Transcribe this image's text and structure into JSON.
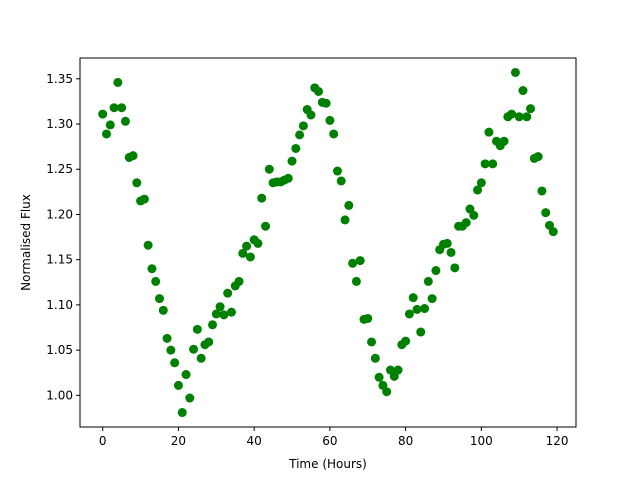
{
  "chart_data": {
    "type": "scatter",
    "title": "",
    "xlabel": "Time (Hours)",
    "ylabel": "Normalised Flux",
    "xlim": [
      -6,
      125
    ],
    "ylim": [
      0.965,
      1.373
    ],
    "grid": false,
    "legend": "none",
    "marker_color": "#008000",
    "x_ticks": [
      {
        "value": 0,
        "label": "0"
      },
      {
        "value": 20,
        "label": "20"
      },
      {
        "value": 40,
        "label": "40"
      },
      {
        "value": 60,
        "label": "60"
      },
      {
        "value": 80,
        "label": "80"
      },
      {
        "value": 100,
        "label": "100"
      },
      {
        "value": 120,
        "label": "120"
      }
    ],
    "y_ticks": [
      {
        "value": 1.0,
        "label": "1.00"
      },
      {
        "value": 1.05,
        "label": "1.05"
      },
      {
        "value": 1.1,
        "label": "1.10"
      },
      {
        "value": 1.15,
        "label": "1.15"
      },
      {
        "value": 1.2,
        "label": "1.20"
      },
      {
        "value": 1.25,
        "label": "1.25"
      },
      {
        "value": 1.3,
        "label": "1.30"
      },
      {
        "value": 1.35,
        "label": "1.35"
      }
    ],
    "points": [
      [
        0,
        1.311
      ],
      [
        1,
        1.289
      ],
      [
        2,
        1.299
      ],
      [
        3,
        1.318
      ],
      [
        4,
        1.346
      ],
      [
        5,
        1.318
      ],
      [
        6,
        1.303
      ],
      [
        7,
        1.263
      ],
      [
        8,
        1.265
      ],
      [
        9,
        1.235
      ],
      [
        10,
        1.215
      ],
      [
        11,
        1.217
      ],
      [
        12,
        1.166
      ],
      [
        13,
        1.14
      ],
      [
        14,
        1.126
      ],
      [
        15,
        1.107
      ],
      [
        16,
        1.094
      ],
      [
        17,
        1.063
      ],
      [
        18,
        1.05
      ],
      [
        19,
        1.036
      ],
      [
        20,
        1.011
      ],
      [
        21,
        0.981
      ],
      [
        22,
        1.023
      ],
      [
        23,
        0.997
      ],
      [
        24,
        1.051
      ],
      [
        25,
        1.073
      ],
      [
        26,
        1.041
      ],
      [
        27,
        1.056
      ],
      [
        28,
        1.059
      ],
      [
        29,
        1.078
      ],
      [
        30,
        1.09
      ],
      [
        31,
        1.098
      ],
      [
        32,
        1.089
      ],
      [
        33,
        1.113
      ],
      [
        34,
        1.092
      ],
      [
        35,
        1.121
      ],
      [
        36,
        1.126
      ],
      [
        37,
        1.157
      ],
      [
        38,
        1.165
      ],
      [
        39,
        1.153
      ],
      [
        40,
        1.172
      ],
      [
        41,
        1.168
      ],
      [
        42,
        1.218
      ],
      [
        43,
        1.187
      ],
      [
        44,
        1.25
      ],
      [
        45,
        1.235
      ],
      [
        46,
        1.236
      ],
      [
        47,
        1.236
      ],
      [
        48,
        1.238
      ],
      [
        49,
        1.24
      ],
      [
        50,
        1.259
      ],
      [
        51,
        1.273
      ],
      [
        52,
        1.288
      ],
      [
        53,
        1.298
      ],
      [
        54,
        1.316
      ],
      [
        55,
        1.31
      ],
      [
        56,
        1.34
      ],
      [
        57,
        1.336
      ],
      [
        58,
        1.324
      ],
      [
        59,
        1.323
      ],
      [
        60,
        1.304
      ],
      [
        61,
        1.289
      ],
      [
        62,
        1.248
      ],
      [
        63,
        1.237
      ],
      [
        64,
        1.194
      ],
      [
        65,
        1.21
      ],
      [
        66,
        1.146
      ],
      [
        67,
        1.126
      ],
      [
        68,
        1.149
      ],
      [
        69,
        1.084
      ],
      [
        70,
        1.085
      ],
      [
        71,
        1.059
      ],
      [
        72,
        1.041
      ],
      [
        73,
        1.02
      ],
      [
        74,
        1.011
      ],
      [
        75,
        1.004
      ],
      [
        76,
        1.028
      ],
      [
        77,
        1.021
      ],
      [
        78,
        1.028
      ],
      [
        79,
        1.056
      ],
      [
        80,
        1.06
      ],
      [
        81,
        1.09
      ],
      [
        82,
        1.108
      ],
      [
        83,
        1.095
      ],
      [
        84,
        1.07
      ],
      [
        85,
        1.096
      ],
      [
        86,
        1.126
      ],
      [
        87,
        1.107
      ],
      [
        88,
        1.138
      ],
      [
        89,
        1.161
      ],
      [
        90,
        1.167
      ],
      [
        91,
        1.168
      ],
      [
        92,
        1.158
      ],
      [
        93,
        1.141
      ],
      [
        94,
        1.187
      ],
      [
        95,
        1.187
      ],
      [
        96,
        1.191
      ],
      [
        97,
        1.206
      ],
      [
        98,
        1.199
      ],
      [
        99,
        1.227
      ],
      [
        100,
        1.235
      ],
      [
        101,
        1.256
      ],
      [
        102,
        1.291
      ],
      [
        103,
        1.256
      ],
      [
        104,
        1.281
      ],
      [
        105,
        1.276
      ],
      [
        106,
        1.281
      ],
      [
        107,
        1.308
      ],
      [
        108,
        1.311
      ],
      [
        109,
        1.357
      ],
      [
        110,
        1.308
      ],
      [
        111,
        1.337
      ],
      [
        112,
        1.308
      ],
      [
        113,
        1.317
      ],
      [
        114,
        1.262
      ],
      [
        115,
        1.264
      ],
      [
        116,
        1.226
      ],
      [
        117,
        1.202
      ],
      [
        118,
        1.188
      ],
      [
        119,
        1.181
      ]
    ]
  }
}
